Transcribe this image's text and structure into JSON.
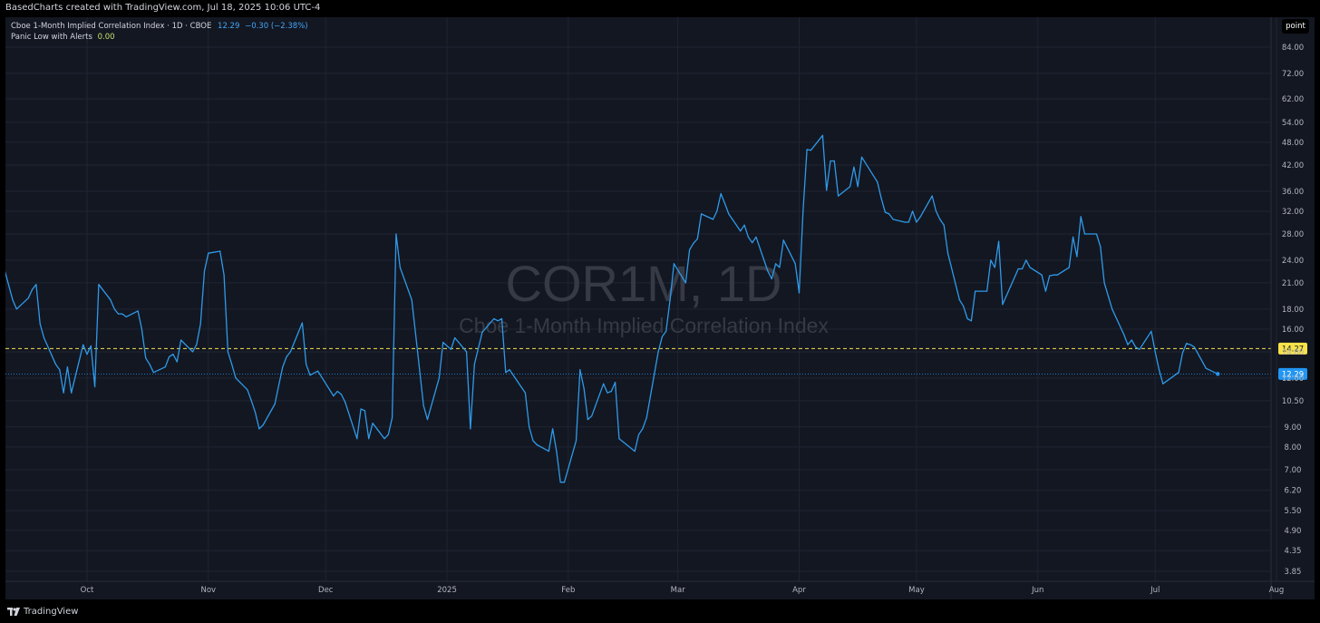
{
  "header": {
    "created_by": "BasedCharts created with TradingView.com, Jul 18, 2025 10:06 UTC-4"
  },
  "legend": {
    "symbol_text": "Cboe 1-Month Implied Correlation Index · 1D · CBOE",
    "last": "12.29",
    "change": "−0.30 (−2.38%)",
    "indicator_name": "Panic Low with Alerts",
    "indicator_value": "0.00"
  },
  "toolbar": {
    "point_label": "point"
  },
  "watermark": {
    "symbol": "COR1M, 1D",
    "description": "Cboe 1-Month Implied Correlation Index"
  },
  "footer": {
    "brand": "TradingView"
  },
  "colors": {
    "background": "#131722",
    "line": "#2f9ae8",
    "grid": "#1f2433",
    "hline": "#f7e24a",
    "label_blue": "#2196f3",
    "label_yellow": "#f7e24a"
  },
  "chart_data": {
    "type": "line",
    "y_scale": "log",
    "y_ticks": [
      "84.00",
      "72.00",
      "62.00",
      "54.00",
      "48.00",
      "42.00",
      "36.00",
      "32.00",
      "28.00",
      "24.00",
      "21.00",
      "18.00",
      "16.00",
      "14.00",
      "12.00",
      "10.50",
      "9.00",
      "8.00",
      "7.00",
      "6.20",
      "5.50",
      "4.90",
      "4.35",
      "3.85"
    ],
    "x_ticks": [
      {
        "label": "Oct",
        "date": "2024-10-01"
      },
      {
        "label": "Nov",
        "date": "2024-11-01"
      },
      {
        "label": "Dec",
        "date": "2024-12-01"
      },
      {
        "label": "2025",
        "date": "2025-01-01"
      },
      {
        "label": "Feb",
        "date": "2025-02-01"
      },
      {
        "label": "Mar",
        "date": "2025-03-01"
      },
      {
        "label": "Apr",
        "date": "2025-04-01"
      },
      {
        "label": "May",
        "date": "2025-05-01"
      },
      {
        "label": "Jun",
        "date": "2025-06-01"
      },
      {
        "label": "Jul",
        "date": "2025-07-01"
      },
      {
        "label": "Aug",
        "date": "2025-08-01"
      }
    ],
    "hline": {
      "value": 14.27,
      "label": "14.27"
    },
    "last_price": {
      "value": 12.29,
      "label": "12.29"
    },
    "series": [
      {
        "values": [
          [
            "2024-09-10",
            22.5
          ],
          [
            "2024-09-12",
            19.0
          ],
          [
            "2024-09-13",
            18.0
          ],
          [
            "2024-09-16",
            19.2
          ],
          [
            "2024-09-17",
            20.2
          ],
          [
            "2024-09-18",
            20.8
          ],
          [
            "2024-09-19",
            16.5
          ],
          [
            "2024-09-20",
            15.2
          ],
          [
            "2024-09-23",
            13.0
          ],
          [
            "2024-09-24",
            12.6
          ],
          [
            "2024-09-25",
            11.0
          ],
          [
            "2024-09-26",
            12.8
          ],
          [
            "2024-09-27",
            11.0
          ],
          [
            "2024-09-30",
            14.6
          ],
          [
            "2024-10-01",
            13.8
          ],
          [
            "2024-10-02",
            14.5
          ],
          [
            "2024-10-03",
            11.4
          ],
          [
            "2024-10-04",
            20.8
          ],
          [
            "2024-10-07",
            19.0
          ],
          [
            "2024-10-08",
            18.0
          ],
          [
            "2024-10-09",
            17.5
          ],
          [
            "2024-10-10",
            17.5
          ],
          [
            "2024-10-11",
            17.2
          ],
          [
            "2024-10-14",
            17.8
          ],
          [
            "2024-10-15",
            16.0
          ],
          [
            "2024-10-16",
            13.5
          ],
          [
            "2024-10-17",
            13.0
          ],
          [
            "2024-10-18",
            12.4
          ],
          [
            "2024-10-21",
            12.8
          ],
          [
            "2024-10-22",
            13.6
          ],
          [
            "2024-10-23",
            13.8
          ],
          [
            "2024-10-24",
            13.2
          ],
          [
            "2024-10-25",
            15.0
          ],
          [
            "2024-10-28",
            14.0
          ],
          [
            "2024-10-29",
            14.6
          ],
          [
            "2024-10-30",
            16.5
          ],
          [
            "2024-10-31",
            22.5
          ],
          [
            "2024-11-01",
            25.0
          ],
          [
            "2024-11-04",
            25.3
          ],
          [
            "2024-11-05",
            22.0
          ],
          [
            "2024-11-06",
            14.0
          ],
          [
            "2024-11-07",
            13.0
          ],
          [
            "2024-11-08",
            12.0
          ],
          [
            "2024-11-11",
            11.2
          ],
          [
            "2024-11-12",
            10.5
          ],
          [
            "2024-11-13",
            9.8
          ],
          [
            "2024-11-14",
            8.9
          ],
          [
            "2024-11-15",
            9.1
          ],
          [
            "2024-11-18",
            10.3
          ],
          [
            "2024-11-19",
            11.5
          ],
          [
            "2024-11-20",
            12.8
          ],
          [
            "2024-11-21",
            13.6
          ],
          [
            "2024-11-22",
            14.0
          ],
          [
            "2024-11-25",
            16.6
          ],
          [
            "2024-11-26",
            13.0
          ],
          [
            "2024-11-27",
            12.2
          ],
          [
            "2024-11-29",
            12.5
          ],
          [
            "2024-12-02",
            11.2
          ],
          [
            "2024-12-03",
            10.8
          ],
          [
            "2024-12-04",
            11.1
          ],
          [
            "2024-12-05",
            10.9
          ],
          [
            "2024-12-06",
            10.4
          ],
          [
            "2024-12-09",
            8.4
          ],
          [
            "2024-12-10",
            10.0
          ],
          [
            "2024-12-11",
            9.9
          ],
          [
            "2024-12-12",
            8.4
          ],
          [
            "2024-12-13",
            9.2
          ],
          [
            "2024-12-16",
            8.4
          ],
          [
            "2024-12-17",
            8.6
          ],
          [
            "2024-12-18",
            9.5
          ],
          [
            "2024-12-19",
            28.0
          ],
          [
            "2024-12-20",
            23.0
          ],
          [
            "2024-12-23",
            19.0
          ],
          [
            "2024-12-24",
            15.5
          ],
          [
            "2024-12-26",
            10.2
          ],
          [
            "2024-12-27",
            9.4
          ],
          [
            "2024-12-30",
            12.0
          ],
          [
            "2024-12-31",
            14.8
          ],
          [
            "2025-01-02",
            14.2
          ],
          [
            "2025-01-03",
            15.2
          ],
          [
            "2025-01-06",
            14.0
          ],
          [
            "2025-01-07",
            8.9
          ],
          [
            "2025-01-08",
            13.0
          ],
          [
            "2025-01-10",
            15.7
          ],
          [
            "2025-01-13",
            17.0
          ],
          [
            "2025-01-14",
            16.8
          ],
          [
            "2025-01-15",
            17.0
          ],
          [
            "2025-01-16",
            12.4
          ],
          [
            "2025-01-17",
            12.6
          ],
          [
            "2025-01-21",
            11.0
          ],
          [
            "2025-01-22",
            9.0
          ],
          [
            "2025-01-23",
            8.3
          ],
          [
            "2025-01-24",
            8.1
          ],
          [
            "2025-01-27",
            7.8
          ],
          [
            "2025-01-28",
            8.9
          ],
          [
            "2025-01-29",
            7.8
          ],
          [
            "2025-01-30",
            6.5
          ],
          [
            "2025-01-31",
            6.5
          ],
          [
            "2025-02-03",
            8.3
          ],
          [
            "2025-02-04",
            12.6
          ],
          [
            "2025-02-05",
            11.3
          ],
          [
            "2025-02-06",
            9.4
          ],
          [
            "2025-02-07",
            9.6
          ],
          [
            "2025-02-10",
            11.6
          ],
          [
            "2025-02-11",
            11.0
          ],
          [
            "2025-02-12",
            11.1
          ],
          [
            "2025-02-13",
            11.7
          ],
          [
            "2025-02-14",
            8.4
          ],
          [
            "2025-02-18",
            7.8
          ],
          [
            "2025-02-19",
            8.6
          ],
          [
            "2025-02-20",
            8.9
          ],
          [
            "2025-02-21",
            9.5
          ],
          [
            "2025-02-24",
            14.0
          ],
          [
            "2025-02-25",
            15.3
          ],
          [
            "2025-02-26",
            15.8
          ],
          [
            "2025-02-27",
            19.0
          ],
          [
            "2025-02-28",
            23.5
          ],
          [
            "2025-03-03",
            21.0
          ],
          [
            "2025-03-04",
            25.5
          ],
          [
            "2025-03-05",
            26.5
          ],
          [
            "2025-03-06",
            27.2
          ],
          [
            "2025-03-07",
            31.5
          ],
          [
            "2025-03-10",
            30.5
          ],
          [
            "2025-03-11",
            32.0
          ],
          [
            "2025-03-12",
            35.5
          ],
          [
            "2025-03-13",
            33.5
          ],
          [
            "2025-03-14",
            31.5
          ],
          [
            "2025-03-17",
            28.5
          ],
          [
            "2025-03-18",
            29.5
          ],
          [
            "2025-03-19",
            27.5
          ],
          [
            "2025-03-20",
            26.6
          ],
          [
            "2025-03-21",
            27.5
          ],
          [
            "2025-03-24",
            22.5
          ],
          [
            "2025-03-25",
            21.5
          ],
          [
            "2025-03-26",
            23.5
          ],
          [
            "2025-03-27",
            23.0
          ],
          [
            "2025-03-28",
            27.0
          ],
          [
            "2025-03-31",
            23.5
          ],
          [
            "2025-04-01",
            19.8
          ],
          [
            "2025-04-02",
            32.0
          ],
          [
            "2025-04-03",
            46.0
          ],
          [
            "2025-04-04",
            45.8
          ],
          [
            "2025-04-07",
            50.0
          ],
          [
            "2025-04-08",
            36.2
          ],
          [
            "2025-04-09",
            43.0
          ],
          [
            "2025-04-10",
            43.0
          ],
          [
            "2025-04-11",
            35.0
          ],
          [
            "2025-04-14",
            37.0
          ],
          [
            "2025-04-15",
            41.5
          ],
          [
            "2025-04-16",
            37.0
          ],
          [
            "2025-04-17",
            44.0
          ],
          [
            "2025-04-21",
            38.0
          ],
          [
            "2025-04-22",
            34.5
          ],
          [
            "2025-04-23",
            31.8
          ],
          [
            "2025-04-24",
            31.5
          ],
          [
            "2025-04-25",
            30.5
          ],
          [
            "2025-04-28",
            30.0
          ],
          [
            "2025-04-29",
            30.0
          ],
          [
            "2025-04-30",
            32.0
          ],
          [
            "2025-05-01",
            30.0
          ],
          [
            "2025-05-02",
            31.0
          ],
          [
            "2025-05-05",
            35.0
          ],
          [
            "2025-05-06",
            32.0
          ],
          [
            "2025-05-07",
            30.5
          ],
          [
            "2025-05-08",
            29.5
          ],
          [
            "2025-05-09",
            25.0
          ],
          [
            "2025-05-12",
            19.0
          ],
          [
            "2025-05-13",
            18.3
          ],
          [
            "2025-05-14",
            17.0
          ],
          [
            "2025-05-15",
            16.8
          ],
          [
            "2025-05-16",
            20.0
          ],
          [
            "2025-05-19",
            20.0
          ],
          [
            "2025-05-20",
            24.0
          ],
          [
            "2025-05-21",
            23.0
          ],
          [
            "2025-05-22",
            26.8
          ],
          [
            "2025-05-23",
            18.5
          ],
          [
            "2025-05-27",
            22.8
          ],
          [
            "2025-05-28",
            22.8
          ],
          [
            "2025-05-29",
            24.0
          ],
          [
            "2025-05-30",
            23.0
          ],
          [
            "2025-06-02",
            22.0
          ],
          [
            "2025-06-03",
            20.0
          ],
          [
            "2025-06-04",
            21.9
          ],
          [
            "2025-06-05",
            22.0
          ],
          [
            "2025-06-06",
            22.0
          ],
          [
            "2025-06-09",
            23.0
          ],
          [
            "2025-06-10",
            27.5
          ],
          [
            "2025-06-11",
            24.5
          ],
          [
            "2025-06-12",
            31.0
          ],
          [
            "2025-06-13",
            28.0
          ],
          [
            "2025-06-16",
            28.0
          ],
          [
            "2025-06-17",
            26.0
          ],
          [
            "2025-06-18",
            21.0
          ],
          [
            "2025-06-20",
            18.0
          ],
          [
            "2025-06-23",
            15.5
          ],
          [
            "2025-06-24",
            14.6
          ],
          [
            "2025-06-25",
            15.0
          ],
          [
            "2025-06-26",
            14.4
          ],
          [
            "2025-06-27",
            14.2
          ],
          [
            "2025-06-30",
            15.8
          ],
          [
            "2025-07-01",
            14.0
          ],
          [
            "2025-07-02",
            12.6
          ],
          [
            "2025-07-03",
            11.6
          ],
          [
            "2025-07-07",
            12.4
          ],
          [
            "2025-07-08",
            13.9
          ],
          [
            "2025-07-09",
            14.7
          ],
          [
            "2025-07-10",
            14.6
          ],
          [
            "2025-07-11",
            14.4
          ],
          [
            "2025-07-14",
            12.7
          ],
          [
            "2025-07-17",
            12.29
          ]
        ]
      }
    ]
  }
}
